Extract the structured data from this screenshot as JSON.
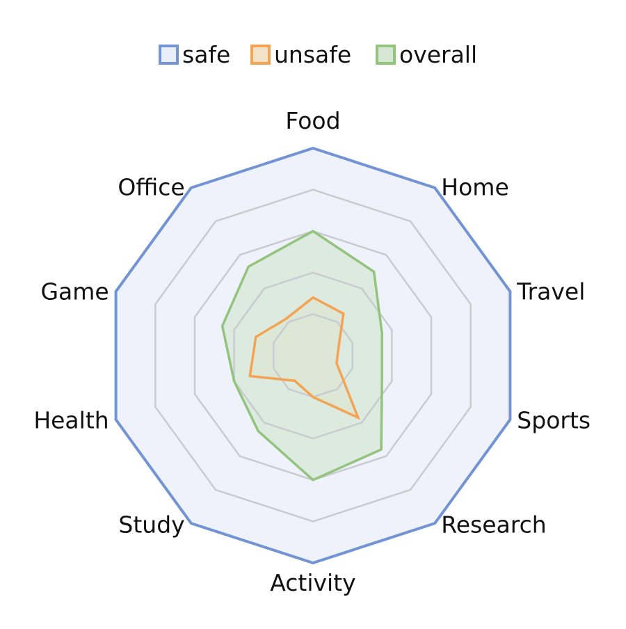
{
  "chart_data": {
    "type": "radar",
    "title": "",
    "categories": [
      "Food",
      "Home",
      "Travel",
      "Sports",
      "Research",
      "Activity",
      "Study",
      "Health",
      "Game",
      "Office"
    ],
    "rlim": [
      0,
      5
    ],
    "grid_levels": 5,
    "grid": true,
    "legend_position": "top",
    "series": [
      {
        "name": "safe",
        "color": "#7294D4",
        "fill": "#E9EEF8",
        "values": [
          5,
          5,
          5,
          5,
          5,
          5,
          5,
          5,
          5,
          5
        ]
      },
      {
        "name": "unsafe",
        "color": "#F4A353",
        "fill": "#F2E2C8",
        "values": [
          1.4,
          1.25,
          0.65,
          0.6,
          1.85,
          1.0,
          0.75,
          1.6,
          1.45,
          1.1
        ]
      },
      {
        "name": "overall",
        "color": "#93C47D",
        "fill": "#D6E7D6",
        "values": [
          3.0,
          2.5,
          1.75,
          1.75,
          2.8,
          3.0,
          2.25,
          2.0,
          2.3,
          2.65
        ]
      }
    ]
  }
}
